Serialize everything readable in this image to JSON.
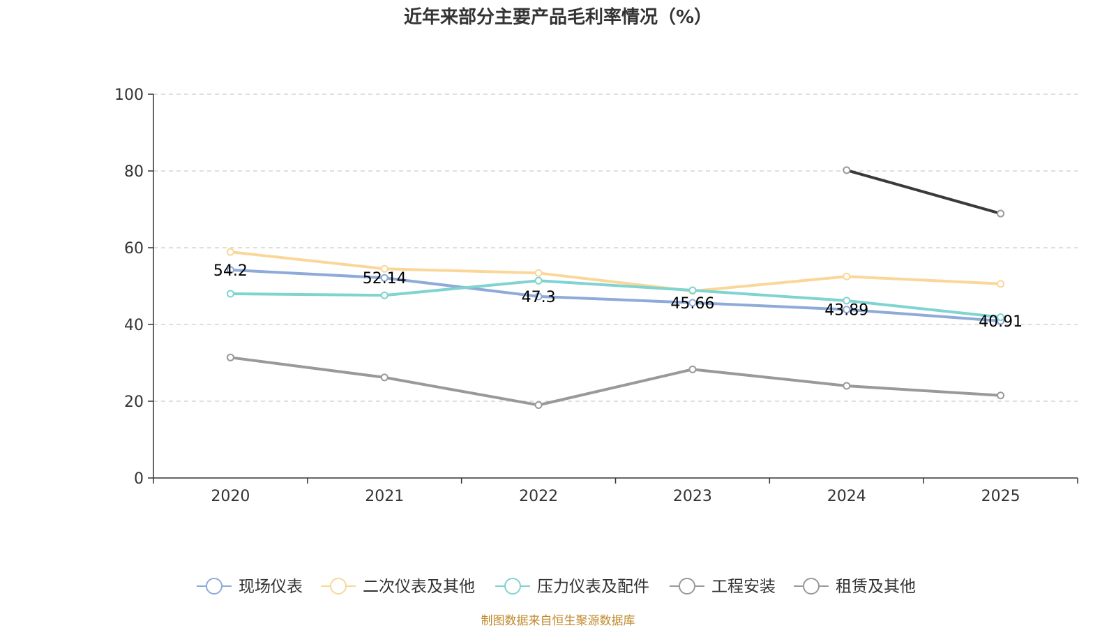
{
  "chart_data": {
    "type": "line",
    "title": "近年来部分主要产品毛利率情况（%）",
    "categories": [
      "2020",
      "2021",
      "2022",
      "2023",
      "2024",
      "2025"
    ],
    "ylim": [
      0,
      100
    ],
    "yticks": [
      "0",
      "20",
      "40",
      "60",
      "80",
      "100"
    ],
    "grid": true,
    "legend_position": "bottom",
    "series": [
      {
        "name": "现场仪表",
        "color": "#8eaad8",
        "values": [
          54.2,
          52.14,
          47.3,
          45.66,
          43.89,
          40.91
        ],
        "labels": [
          "54.2",
          "52.14",
          "47.3",
          "45.66",
          "43.89",
          "40.91"
        ]
      },
      {
        "name": "二次仪表及其他",
        "color": "#fad799",
        "values": [
          58.9,
          54.5,
          53.4,
          48.7,
          52.5,
          50.6
        ]
      },
      {
        "name": "压力仪表及配件",
        "color": "#7fd3d0",
        "values": [
          48.0,
          47.6,
          51.4,
          48.9,
          46.2,
          41.9
        ]
      },
      {
        "name": "工程安装",
        "color": "#3a3a3a",
        "legend_color": "#999999",
        "values": [
          null,
          null,
          null,
          null,
          80.2,
          68.9
        ]
      },
      {
        "name": "租赁及其他",
        "color": "#999999",
        "values": [
          31.4,
          26.2,
          19.0,
          28.3,
          24.0,
          21.5
        ]
      }
    ],
    "source": "制图数据来自恒生聚源数据库"
  }
}
